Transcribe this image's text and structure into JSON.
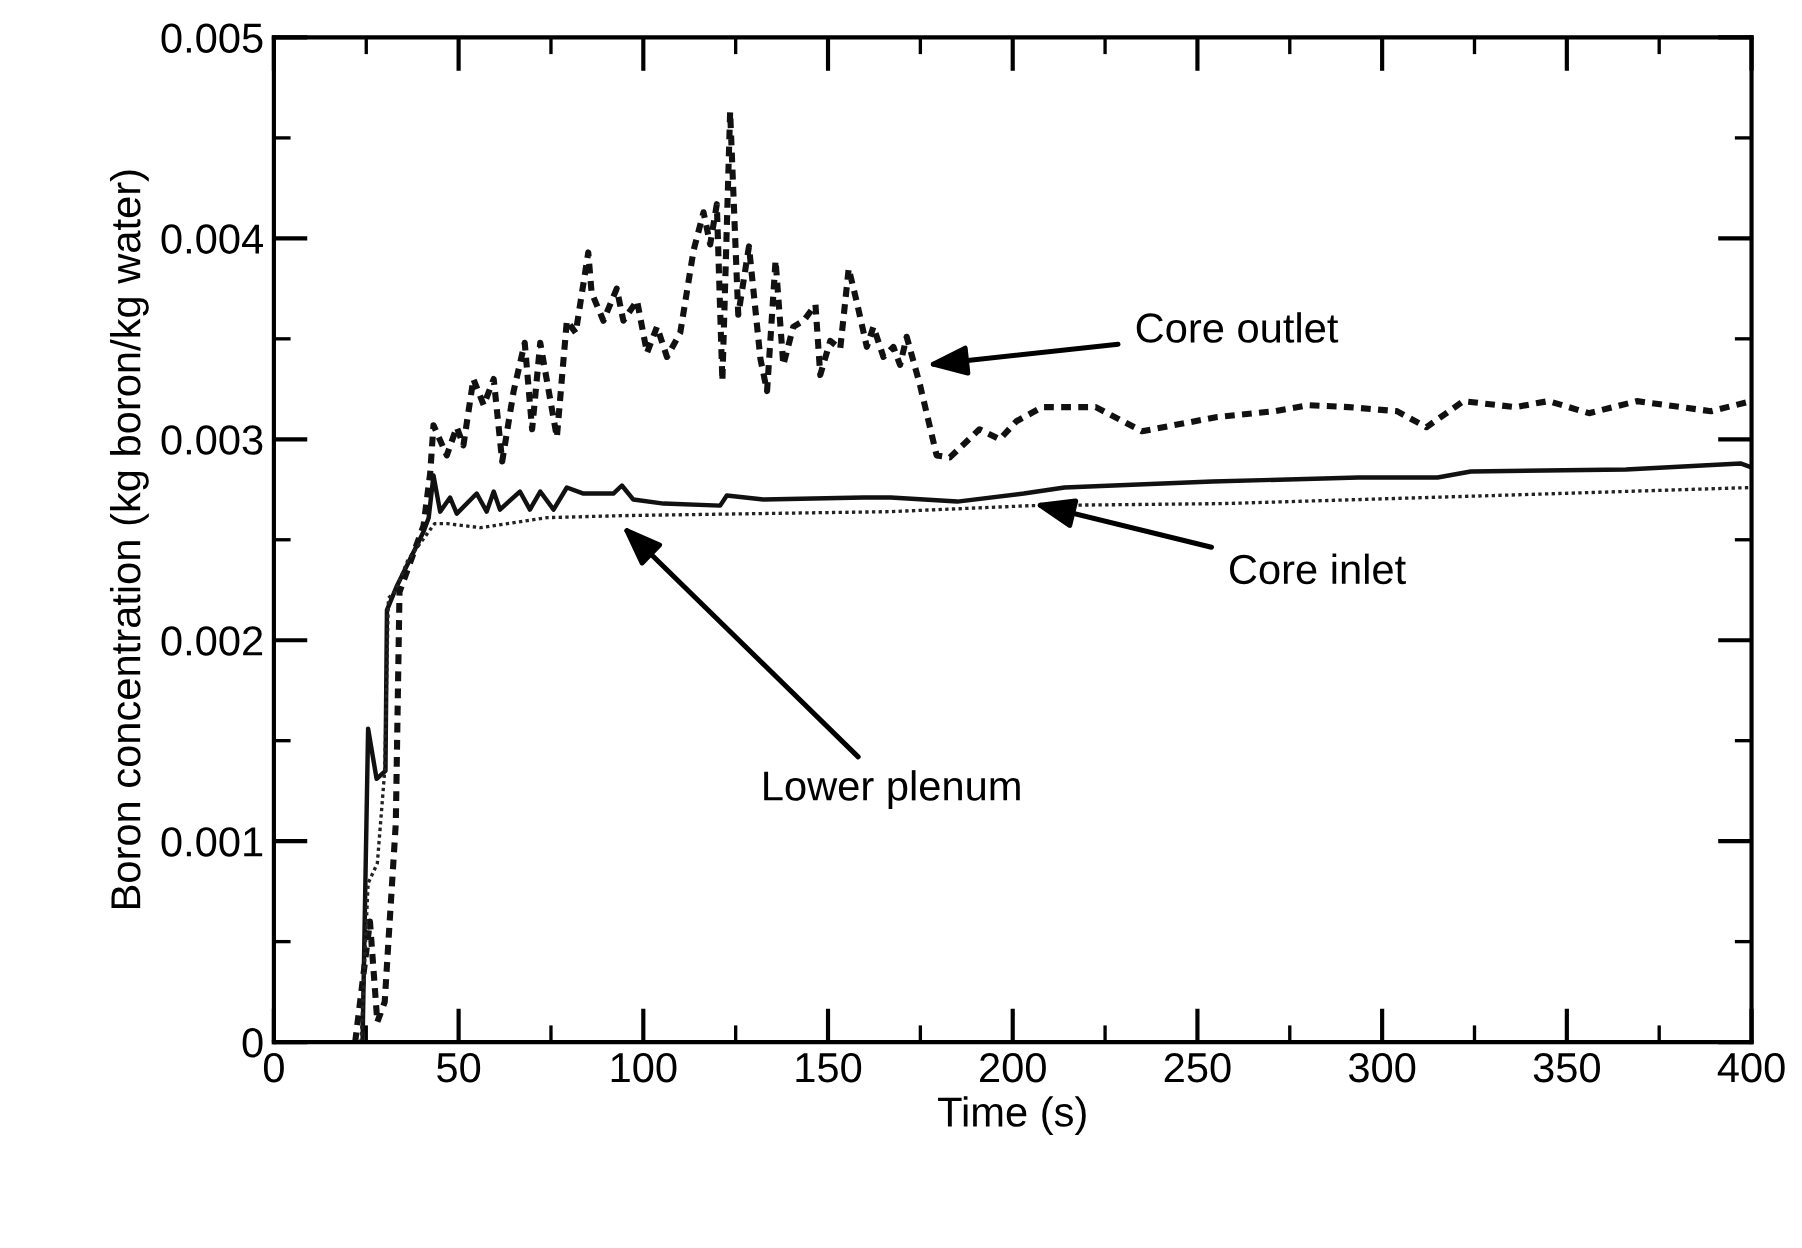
{
  "chart_data": {
    "type": "line",
    "xlabel": "Time (s)",
    "ylabel": "Boron concentration (kg boron/kg water)",
    "xlim": [
      0,
      400
    ],
    "xticks": [
      0,
      50,
      100,
      150,
      200,
      250,
      300,
      350,
      400
    ],
    "ylim": [
      0,
      0.005
    ],
    "yticks": [
      0,
      0.001,
      0.002,
      0.003,
      0.004,
      0.005
    ],
    "grid": false,
    "legend": false,
    "series": [
      {
        "color": "#111111",
        "line_style": "dashed",
        "x": [
          22,
          26,
          28,
          30,
          31,
          33,
          34,
          40.5,
          42.3,
          43.2,
          46.8,
          49.5,
          51.3,
          54,
          56.8,
          59.5,
          61.8,
          64.9,
          67.9,
          69.9,
          72.1,
          76.6,
          79.3,
          81.7,
          85.1,
          86,
          89.2,
          92.8,
          94.6,
          98.3,
          101,
          103.7,
          106.4,
          110,
          113.6,
          116.3,
          118.1,
          119.9,
          121.4,
          123.5,
          125.7,
          128.6,
          131.7,
          133.5,
          135.8,
          137.9,
          140.6,
          143.4,
          146.6,
          147.9,
          150.6,
          153.3,
          155.6,
          157.7,
          160.5,
          162.3,
          165,
          167.7,
          169.5,
          171.3,
          174.9,
          179.4,
          183,
          191,
          196.5,
          201,
          208,
          222.5,
          235,
          255,
          271,
          280,
          291,
          304,
          312,
          322,
          336,
          345,
          356,
          369,
          389,
          400
        ],
        "values": [
          0,
          0.0006,
          0.0001,
          0.0002,
          0.0005,
          0.00109,
          0.00224,
          0.00257,
          0.00283,
          0.00307,
          0.00292,
          0.00306,
          0.00297,
          0.0033,
          0.00317,
          0.0033,
          0.00289,
          0.00324,
          0.00348,
          0.00305,
          0.00348,
          0.00301,
          0.00359,
          0.00353,
          0.00393,
          0.00373,
          0.00359,
          0.00375,
          0.00359,
          0.00369,
          0.00343,
          0.00356,
          0.00341,
          0.00353,
          0.00394,
          0.00413,
          0.00397,
          0.00417,
          0.00329,
          0.00463,
          0.00362,
          0.00396,
          0.0034,
          0.00324,
          0.00389,
          0.00337,
          0.00356,
          0.00359,
          0.00367,
          0.00332,
          0.00349,
          0.00345,
          0.00385,
          0.00369,
          0.00346,
          0.00356,
          0.00341,
          0.00346,
          0.00337,
          0.00351,
          0.00327,
          0.00292,
          0.00291,
          0.00305,
          0.003,
          0.00309,
          0.00316,
          0.00316,
          0.00304,
          0.00311,
          0.00314,
          0.00317,
          0.00316,
          0.00314,
          0.00306,
          0.00319,
          0.00316,
          0.00319,
          0.00313,
          0.00319,
          0.00314,
          0.00319
        ]
      },
      {
        "color": "#111111",
        "line_style": "solid",
        "x": [
          24,
          25.5,
          27.8,
          30.2,
          30.6,
          33.3,
          40.5,
          41.9,
          43.2,
          45,
          47.7,
          49.5,
          54.9,
          57.6,
          59.5,
          61.2,
          66.6,
          69.3,
          72.1,
          75.7,
          79.3,
          83.8,
          91.9,
          94.2,
          97.3,
          105.5,
          120.8,
          122.6,
          132.5,
          159.6,
          167,
          185,
          203,
          214,
          254,
          293.6,
          315,
          324,
          366,
          397,
          400
        ],
        "values": [
          0,
          0.00156,
          0.00131,
          0.00135,
          0.00215,
          0.00227,
          0.00254,
          0.00261,
          0.00282,
          0.00264,
          0.00271,
          0.00263,
          0.00273,
          0.00264,
          0.00274,
          0.00265,
          0.00274,
          0.00265,
          0.00274,
          0.00265,
          0.00276,
          0.00273,
          0.00273,
          0.00277,
          0.0027,
          0.00268,
          0.00267,
          0.00272,
          0.0027,
          0.00271,
          0.00271,
          0.00269,
          0.00273,
          0.00276,
          0.00279,
          0.00281,
          0.00281,
          0.00284,
          0.00285,
          0.00288,
          0.00286
        ]
      },
      {
        "color": "#222222",
        "line_style": "dotted",
        "x": [
          23.6,
          25.5,
          28,
          30,
          31,
          32.7,
          36.3,
          43.5,
          47,
          56,
          74,
          94,
          167,
          205,
          257,
          330,
          400
        ],
        "values": [
          0,
          0.00079,
          0.00089,
          0.00135,
          0.00221,
          0.00224,
          0.0024,
          0.00258,
          0.00258,
          0.00256,
          0.00261,
          0.00262,
          0.00264,
          0.00267,
          0.00268,
          0.00272,
          0.00276
        ]
      }
    ],
    "annotations": [
      {
        "text": "Core outlet",
        "x": 176.6,
        "y": 0.00337
      },
      {
        "text": "Core inlet",
        "x": 205.6,
        "y": 0.00268
      },
      {
        "text": "Lower plenum",
        "x": 94.2,
        "y": 0.00257
      }
    ]
  }
}
